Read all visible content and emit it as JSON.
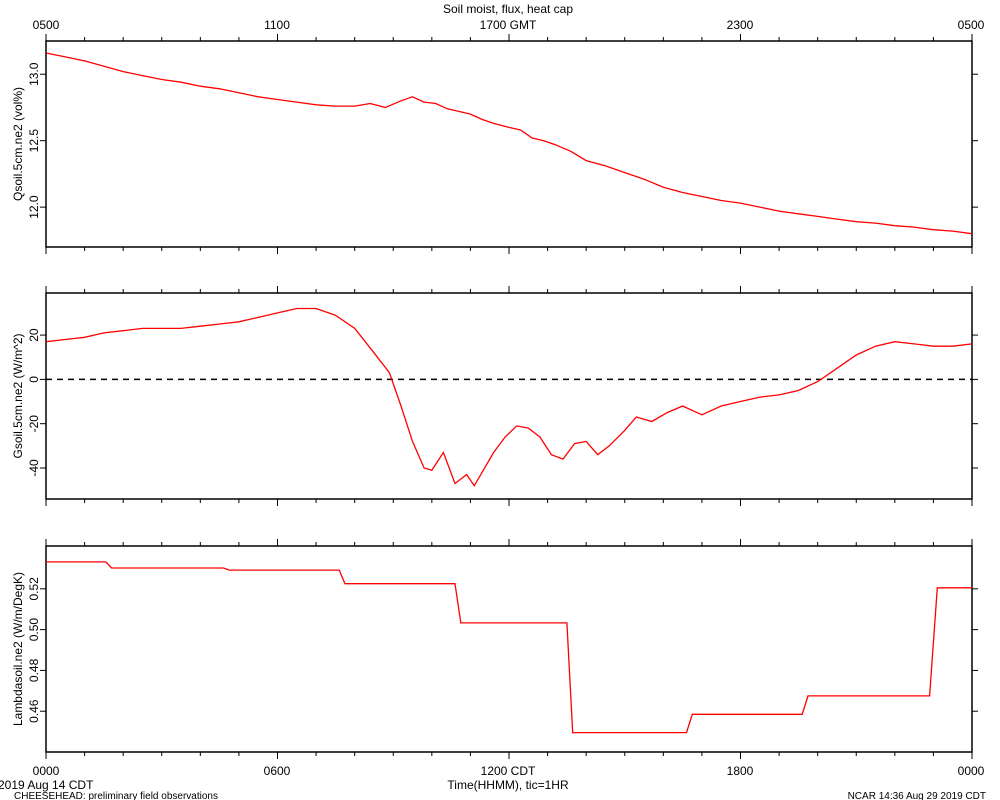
{
  "title": "Soil moist, flux, heat cap",
  "top_axis": {
    "ticks": [
      "0500",
      "1100",
      "1700 GMT",
      "2300",
      "0500"
    ]
  },
  "bottom_axis": {
    "ticks": [
      "0000",
      "0600",
      "1200 CDT",
      "1800",
      "0000"
    ],
    "label": "Time(HHMM), tic=1HR",
    "date_label": "2019 Aug 14 CDT"
  },
  "footer": {
    "left": "CHEESEHEAD: preliminary field observations",
    "right": "NCAR 14:36 Aug 29 2019 CDT"
  },
  "colors": {
    "series": "#ff0000",
    "zero_line": "#000000"
  },
  "chart_data": [
    {
      "type": "line",
      "ylabel": "Qsoil.5cm.ne2 (vol%)",
      "xlim": [
        0,
        24
      ],
      "ylim": [
        11.7,
        13.25
      ],
      "yticks": [
        12.0,
        12.5,
        13.0
      ],
      "ytick_labels": [
        "12.0",
        "12.5",
        "13.0"
      ],
      "x": [
        0,
        0.5,
        1,
        1.5,
        2,
        2.5,
        3,
        3.5,
        4,
        4.5,
        5,
        5.5,
        6,
        6.5,
        7,
        7.5,
        8,
        8.4,
        8.8,
        9.2,
        9.5,
        9.8,
        10.1,
        10.4,
        10.7,
        11,
        11.3,
        11.6,
        12,
        12.3,
        12.6,
        12.9,
        13.2,
        13.6,
        14,
        14.5,
        15,
        15.5,
        16,
        16.5,
        17,
        17.5,
        18,
        18.5,
        19,
        19.5,
        20,
        20.5,
        21,
        21.5,
        22,
        22.5,
        23,
        23.5,
        24
      ],
      "values": [
        13.16,
        13.13,
        13.1,
        13.06,
        13.02,
        12.99,
        12.96,
        12.94,
        12.91,
        12.89,
        12.86,
        12.83,
        12.81,
        12.79,
        12.77,
        12.76,
        12.76,
        12.78,
        12.75,
        12.8,
        12.83,
        12.79,
        12.78,
        12.74,
        12.72,
        12.7,
        12.66,
        12.63,
        12.6,
        12.58,
        12.52,
        12.5,
        12.47,
        12.42,
        12.35,
        12.31,
        12.26,
        12.21,
        12.15,
        12.11,
        12.08,
        12.05,
        12.03,
        12.0,
        11.97,
        11.95,
        11.93,
        11.91,
        11.89,
        11.88,
        11.86,
        11.85,
        11.83,
        11.82,
        11.8
      ]
    },
    {
      "type": "line",
      "ylabel": "Gsoil.5cm.ne2 (W/m^2)",
      "xlim": [
        0,
        24
      ],
      "ylim": [
        -54,
        39
      ],
      "yticks": [
        -40,
        -20,
        0,
        20
      ],
      "ytick_labels": [
        "-40",
        "-20",
        "0",
        "20"
      ],
      "reference_line": 0,
      "x": [
        0,
        0.5,
        1,
        1.5,
        2,
        2.5,
        3,
        3.5,
        4,
        4.5,
        5,
        5.5,
        6,
        6.5,
        7,
        7.5,
        8,
        8.5,
        8.9,
        9.2,
        9.5,
        9.8,
        10.0,
        10.3,
        10.6,
        10.9,
        11.1,
        11.3,
        11.6,
        11.9,
        12.2,
        12.5,
        12.8,
        13.1,
        13.4,
        13.7,
        14.0,
        14.3,
        14.6,
        15.0,
        15.3,
        15.7,
        16.1,
        16.5,
        17.0,
        17.5,
        18.0,
        18.5,
        19.0,
        19.5,
        20.0,
        20.5,
        21.0,
        21.5,
        22.0,
        22.5,
        23.0,
        23.5,
        24.0
      ],
      "values": [
        17,
        18,
        19,
        21,
        22,
        23,
        23,
        23,
        24,
        25,
        26,
        28,
        30,
        32,
        32,
        29,
        23,
        12,
        3,
        -12,
        -28,
        -40,
        -41,
        -33,
        -47,
        -43,
        -48,
        -42,
        -33,
        -26,
        -21,
        -22,
        -26,
        -34,
        -36,
        -29,
        -28,
        -34,
        -30,
        -23,
        -17,
        -19,
        -15,
        -12,
        -16,
        -12,
        -10,
        -8,
        -7,
        -5,
        -1,
        5,
        11,
        15,
        17,
        16,
        15,
        15,
        16
      ]
    },
    {
      "type": "line",
      "ylabel": "Lambdasoil.ne2 (W/m/DegK)",
      "xlim": [
        0,
        24
      ],
      "ylim": [
        0.44,
        0.541
      ],
      "yticks": [
        0.46,
        0.48,
        0.5,
        0.52
      ],
      "ytick_labels": [
        "0.46",
        "0.48",
        "0.50",
        "0.52"
      ],
      "x": [
        0,
        1.55,
        1.7,
        4.6,
        4.75,
        7.6,
        7.75,
        10.6,
        10.75,
        13.5,
        13.65,
        16.6,
        16.75,
        19.6,
        19.75,
        22.9,
        23.1,
        24
      ],
      "values": [
        0.5332,
        0.5332,
        0.5302,
        0.5302,
        0.5292,
        0.5292,
        0.5225,
        0.5225,
        0.5033,
        0.5033,
        0.4495,
        0.4495,
        0.4585,
        0.4585,
        0.4675,
        0.4675,
        0.5205,
        0.5205
      ]
    }
  ]
}
